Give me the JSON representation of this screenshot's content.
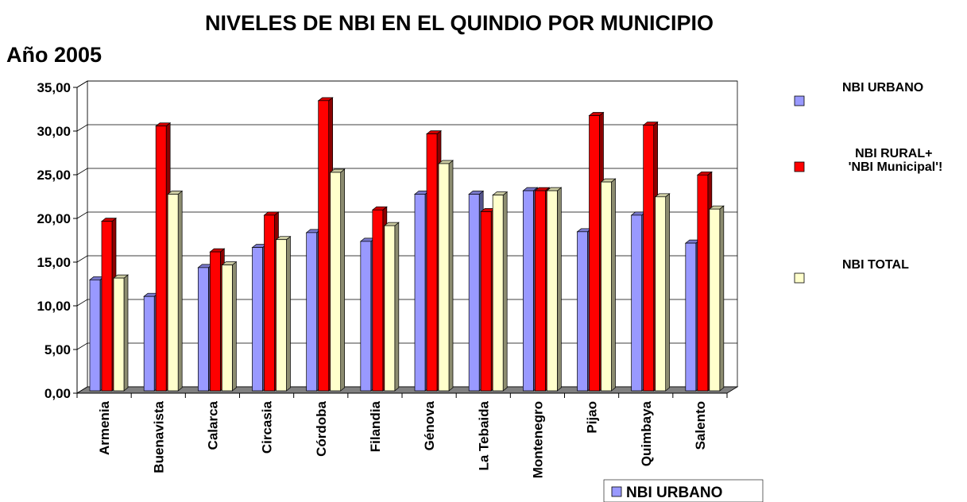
{
  "chart_data": {
    "type": "bar",
    "title": "NIVELES DE NBI EN EL QUINDIO POR MUNICIPIO",
    "subtitle": "Año 2005",
    "categories": [
      "Armenia",
      "Buenavista",
      "Calarca",
      "Circasia",
      "Córdoba",
      "Filandia",
      "Génova",
      "La Tebaida",
      "Montenegro",
      "Pijao",
      "Quimbaya",
      "Salento"
    ],
    "series": [
      {
        "name": "NBI URBANO",
        "color": "#9999ff",
        "values": [
          12.7,
          10.8,
          14.1,
          16.4,
          18.1,
          17.1,
          22.5,
          22.5,
          22.9,
          18.2,
          20.1,
          16.9
        ]
      },
      {
        "name": "NBI RURAL+ 'NBI Municipal'!",
        "color": "#ff0000",
        "values": [
          19.4,
          30.3,
          15.9,
          20.1,
          33.2,
          20.7,
          29.4,
          20.5,
          22.9,
          31.5,
          30.4,
          24.7
        ]
      },
      {
        "name": "NBI TOTAL",
        "color": "#ffffcc",
        "values": [
          12.9,
          22.5,
          14.4,
          17.3,
          25.0,
          18.9,
          26.0,
          22.4,
          22.9,
          23.9,
          22.2,
          20.8
        ]
      }
    ],
    "ylim": [
      0,
      35
    ],
    "yticks": [
      {
        "value": 0,
        "label": "0,00"
      },
      {
        "value": 5,
        "label": "5,00"
      },
      {
        "value": 10,
        "label": "10,00"
      },
      {
        "value": 15,
        "label": "15,00"
      },
      {
        "value": 20,
        "label": "20,00"
      },
      {
        "value": 25,
        "label": "25,00"
      },
      {
        "value": 30,
        "label": "30,00"
      },
      {
        "value": 35,
        "label": "35,00"
      }
    ],
    "grid": true,
    "legend": "right",
    "footer_label": "NBI URBANO"
  }
}
